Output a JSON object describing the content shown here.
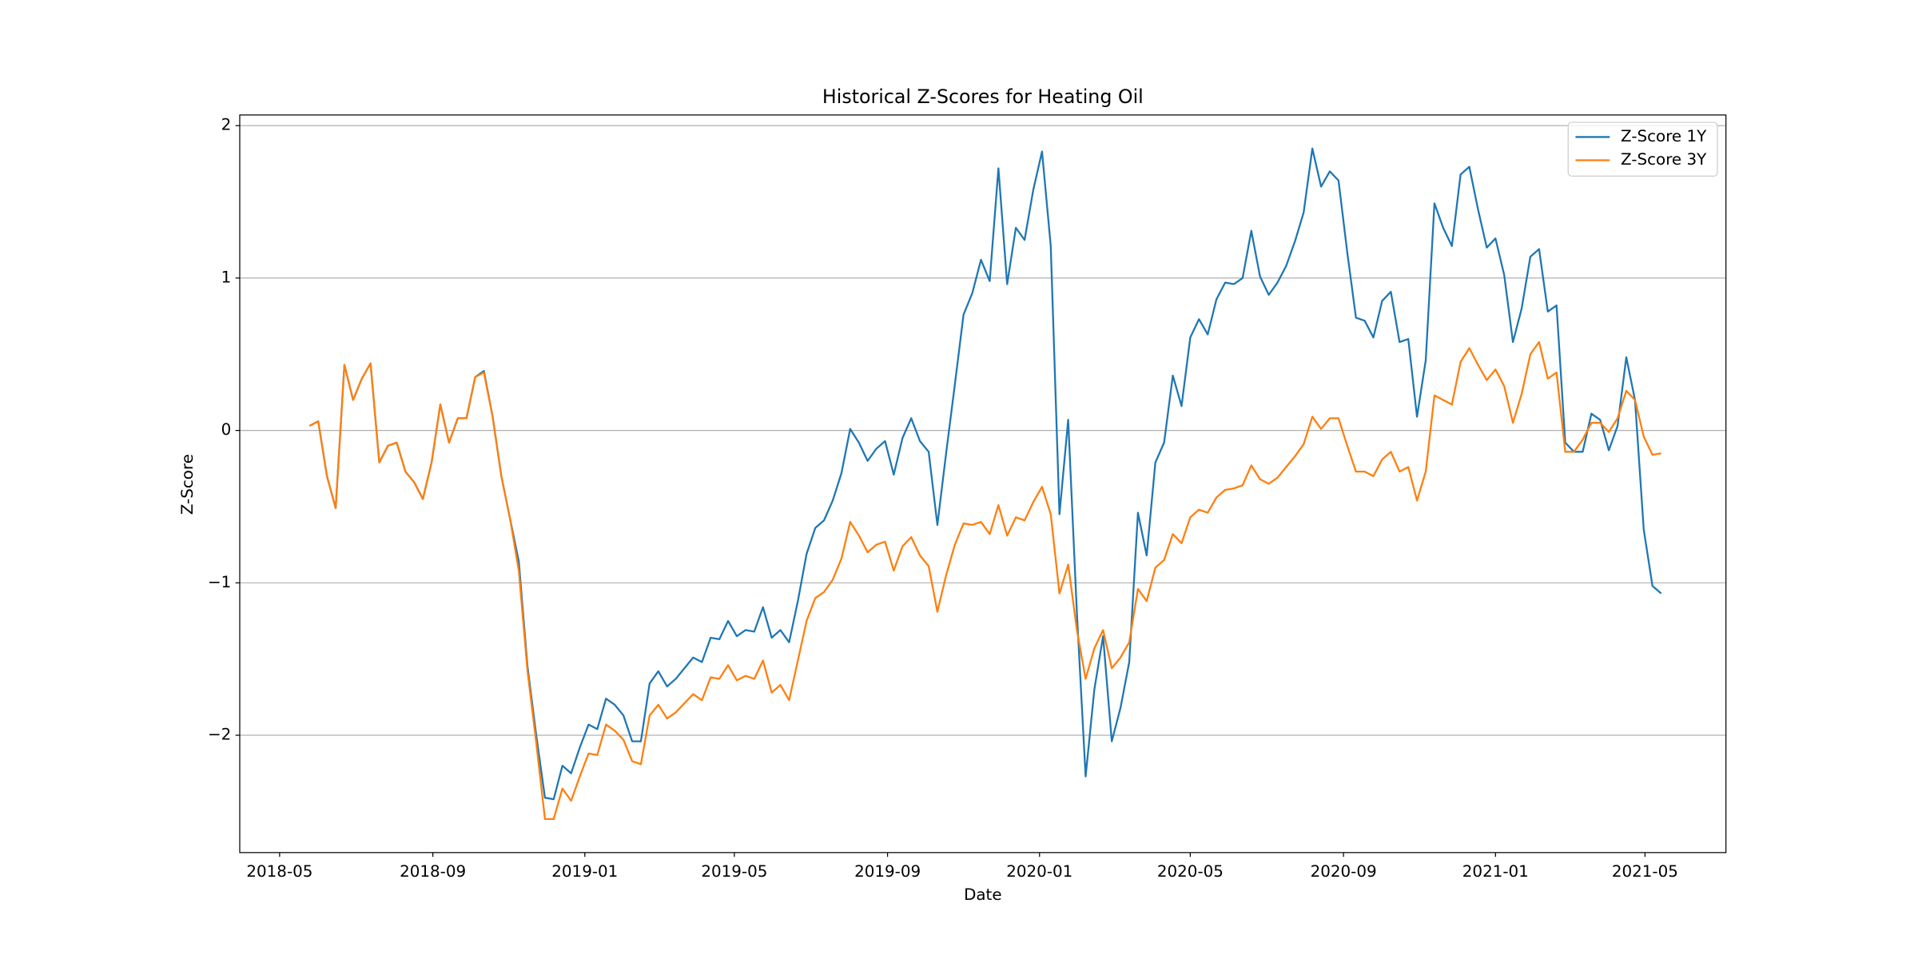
{
  "chart_data": {
    "type": "line",
    "title": "Historical Z-Scores for Heating Oil",
    "xlabel": "Date",
    "ylabel": "Z-Score",
    "x": [
      "2018-05-25",
      "2018-06-01",
      "2018-06-08",
      "2018-06-15",
      "2018-06-22",
      "2018-06-29",
      "2018-07-06",
      "2018-07-13",
      "2018-07-20",
      "2018-07-27",
      "2018-08-03",
      "2018-08-10",
      "2018-08-17",
      "2018-08-24",
      "2018-08-31",
      "2018-09-07",
      "2018-09-14",
      "2018-09-21",
      "2018-09-28",
      "2018-10-05",
      "2018-10-12",
      "2018-10-19",
      "2018-10-26",
      "2018-11-02",
      "2018-11-09",
      "2018-11-16",
      "2018-11-23",
      "2018-11-30",
      "2018-12-07",
      "2018-12-14",
      "2018-12-21",
      "2018-12-28",
      "2019-01-04",
      "2019-01-11",
      "2019-01-18",
      "2019-01-25",
      "2019-02-01",
      "2019-02-08",
      "2019-02-15",
      "2019-02-22",
      "2019-03-01",
      "2019-03-08",
      "2019-03-15",
      "2019-03-22",
      "2019-03-29",
      "2019-04-05",
      "2019-04-12",
      "2019-04-19",
      "2019-04-26",
      "2019-05-03",
      "2019-05-10",
      "2019-05-17",
      "2019-05-24",
      "2019-05-31",
      "2019-06-07",
      "2019-06-14",
      "2019-06-21",
      "2019-06-28",
      "2019-07-05",
      "2019-07-12",
      "2019-07-19",
      "2019-07-26",
      "2019-08-02",
      "2019-08-09",
      "2019-08-16",
      "2019-08-23",
      "2019-08-30",
      "2019-09-06",
      "2019-09-13",
      "2019-09-20",
      "2019-09-27",
      "2019-10-04",
      "2019-10-11",
      "2019-10-18",
      "2019-10-25",
      "2019-11-01",
      "2019-11-08",
      "2019-11-15",
      "2019-11-22",
      "2019-11-29",
      "2019-12-06",
      "2019-12-13",
      "2019-12-20",
      "2019-12-27",
      "2020-01-03",
      "2020-01-10",
      "2020-01-17",
      "2020-01-24",
      "2020-01-31",
      "2020-02-07",
      "2020-02-14",
      "2020-02-21",
      "2020-02-28",
      "2020-03-06",
      "2020-03-13",
      "2020-03-20",
      "2020-03-27",
      "2020-04-03",
      "2020-04-10",
      "2020-04-17",
      "2020-04-24",
      "2020-05-01",
      "2020-05-08",
      "2020-05-15",
      "2020-05-22",
      "2020-05-29",
      "2020-06-05",
      "2020-06-12",
      "2020-06-19",
      "2020-06-26",
      "2020-07-03",
      "2020-07-10",
      "2020-07-17",
      "2020-07-24",
      "2020-07-31",
      "2020-08-07",
      "2020-08-14",
      "2020-08-21",
      "2020-08-28",
      "2020-09-04",
      "2020-09-11",
      "2020-09-18",
      "2020-09-25",
      "2020-10-02",
      "2020-10-09",
      "2020-10-16",
      "2020-10-23",
      "2020-10-30",
      "2020-11-06",
      "2020-11-13",
      "2020-11-20",
      "2020-11-27",
      "2020-12-04",
      "2020-12-11",
      "2020-12-18",
      "2020-12-25",
      "2021-01-01",
      "2021-01-08",
      "2021-01-15",
      "2021-01-22",
      "2021-01-29",
      "2021-02-05",
      "2021-02-12",
      "2021-02-19",
      "2021-02-26",
      "2021-03-05",
      "2021-03-12",
      "2021-03-19",
      "2021-03-26",
      "2021-04-02",
      "2021-04-09",
      "2021-04-16",
      "2021-04-23",
      "2021-04-30",
      "2021-05-07",
      "2021-05-14"
    ],
    "series": [
      {
        "name": "Z-Score 1Y",
        "color": "#1f77b4",
        "values": [
          0.03,
          0.06,
          -0.3,
          -0.51,
          0.43,
          0.2,
          0.34,
          0.44,
          -0.21,
          -0.1,
          -0.08,
          -0.27,
          -0.34,
          -0.45,
          -0.21,
          0.17,
          -0.08,
          0.08,
          0.08,
          0.35,
          0.39,
          0.09,
          -0.3,
          -0.58,
          -0.86,
          -1.55,
          -2.0,
          -2.41,
          -2.42,
          -2.2,
          -2.25,
          -2.08,
          -1.93,
          -1.96,
          -1.76,
          -1.8,
          -1.87,
          -2.04,
          -2.04,
          -1.66,
          -1.58,
          -1.68,
          -1.63,
          -1.56,
          -1.49,
          -1.52,
          -1.36,
          -1.37,
          -1.25,
          -1.35,
          -1.31,
          -1.32,
          -1.16,
          -1.36,
          -1.31,
          -1.39,
          -1.12,
          -0.81,
          -0.64,
          -0.59,
          -0.46,
          -0.28,
          0.01,
          -0.08,
          -0.2,
          -0.12,
          -0.07,
          -0.29,
          -0.05,
          0.08,
          -0.07,
          -0.14,
          -0.62,
          -0.15,
          0.3,
          0.76,
          0.9,
          1.12,
          0.98,
          1.72,
          0.96,
          1.33,
          1.25,
          1.58,
          1.83,
          1.21,
          -0.55,
          0.07,
          -1.2,
          -2.27,
          -1.7,
          -1.35,
          -2.04,
          -1.82,
          -1.52,
          -0.54,
          -0.82,
          -0.21,
          -0.08,
          0.36,
          0.16,
          0.61,
          0.73,
          0.63,
          0.86,
          0.97,
          0.96,
          1.0,
          1.31,
          1.01,
          0.89,
          0.97,
          1.08,
          1.24,
          1.43,
          1.85,
          1.6,
          1.7,
          1.64,
          1.17,
          0.74,
          0.72,
          0.61,
          0.85,
          0.91,
          0.58,
          0.6,
          0.09,
          0.46,
          1.49,
          1.33,
          1.21,
          1.68,
          1.73,
          1.45,
          1.2,
          1.26,
          1.02,
          0.58,
          0.8,
          1.14,
          1.19,
          0.78,
          0.82,
          -0.08,
          -0.14,
          -0.14,
          0.11,
          0.07,
          -0.13,
          0.03,
          0.48,
          0.2,
          -0.65,
          -1.02,
          -1.07
        ]
      },
      {
        "name": "Z-Score 3Y",
        "color": "#ff7f0e",
        "values": [
          0.03,
          0.06,
          -0.3,
          -0.51,
          0.43,
          0.2,
          0.34,
          0.44,
          -0.21,
          -0.1,
          -0.08,
          -0.27,
          -0.34,
          -0.45,
          -0.21,
          0.17,
          -0.08,
          0.08,
          0.08,
          0.35,
          0.38,
          0.09,
          -0.3,
          -0.58,
          -0.92,
          -1.58,
          -2.05,
          -2.55,
          -2.55,
          -2.35,
          -2.43,
          -2.27,
          -2.12,
          -2.13,
          -1.93,
          -1.97,
          -2.03,
          -2.17,
          -2.19,
          -1.87,
          -1.8,
          -1.89,
          -1.85,
          -1.79,
          -1.73,
          -1.77,
          -1.62,
          -1.63,
          -1.54,
          -1.64,
          -1.61,
          -1.63,
          -1.51,
          -1.72,
          -1.67,
          -1.77,
          -1.51,
          -1.25,
          -1.1,
          -1.06,
          -0.98,
          -0.84,
          -0.6,
          -0.69,
          -0.8,
          -0.75,
          -0.73,
          -0.92,
          -0.76,
          -0.7,
          -0.82,
          -0.89,
          -1.19,
          -0.95,
          -0.75,
          -0.61,
          -0.62,
          -0.6,
          -0.68,
          -0.49,
          -0.69,
          -0.57,
          -0.59,
          -0.47,
          -0.37,
          -0.55,
          -1.07,
          -0.88,
          -1.31,
          -1.63,
          -1.43,
          -1.31,
          -1.56,
          -1.49,
          -1.39,
          -1.04,
          -1.12,
          -0.9,
          -0.85,
          -0.68,
          -0.74,
          -0.57,
          -0.52,
          -0.54,
          -0.44,
          -0.39,
          -0.38,
          -0.36,
          -0.23,
          -0.32,
          -0.35,
          -0.31,
          -0.24,
          -0.17,
          -0.09,
          0.09,
          0.01,
          0.08,
          0.08,
          -0.1,
          -0.27,
          -0.27,
          -0.3,
          -0.19,
          -0.14,
          -0.27,
          -0.24,
          -0.46,
          -0.27,
          0.23,
          0.2,
          0.17,
          0.45,
          0.54,
          0.43,
          0.33,
          0.4,
          0.29,
          0.05,
          0.24,
          0.5,
          0.58,
          0.34,
          0.38,
          -0.14,
          -0.14,
          -0.06,
          0.05,
          0.05,
          -0.01,
          0.08,
          0.26,
          0.2,
          -0.04,
          -0.16,
          -0.15
        ]
      }
    ],
    "xlim": [
      "2018-03-30",
      "2021-07-05"
    ],
    "xticks": [
      {
        "value": "2018-05-01",
        "label": "2018-05"
      },
      {
        "value": "2018-09-01",
        "label": "2018-09"
      },
      {
        "value": "2019-01-01",
        "label": "2019-01"
      },
      {
        "value": "2019-05-01",
        "label": "2019-05"
      },
      {
        "value": "2019-09-01",
        "label": "2019-09"
      },
      {
        "value": "2020-01-01",
        "label": "2020-01"
      },
      {
        "value": "2020-05-01",
        "label": "2020-05"
      },
      {
        "value": "2020-09-01",
        "label": "2020-09"
      },
      {
        "value": "2021-01-01",
        "label": "2021-01"
      },
      {
        "value": "2021-05-01",
        "label": "2021-05"
      }
    ],
    "ylim": [
      -2.77,
      2.07
    ],
    "yticks": [
      {
        "value": -2,
        "label": "−2"
      },
      {
        "value": -1,
        "label": "−1"
      },
      0,
      1,
      2
    ],
    "grid": true,
    "legend": "upper right"
  }
}
